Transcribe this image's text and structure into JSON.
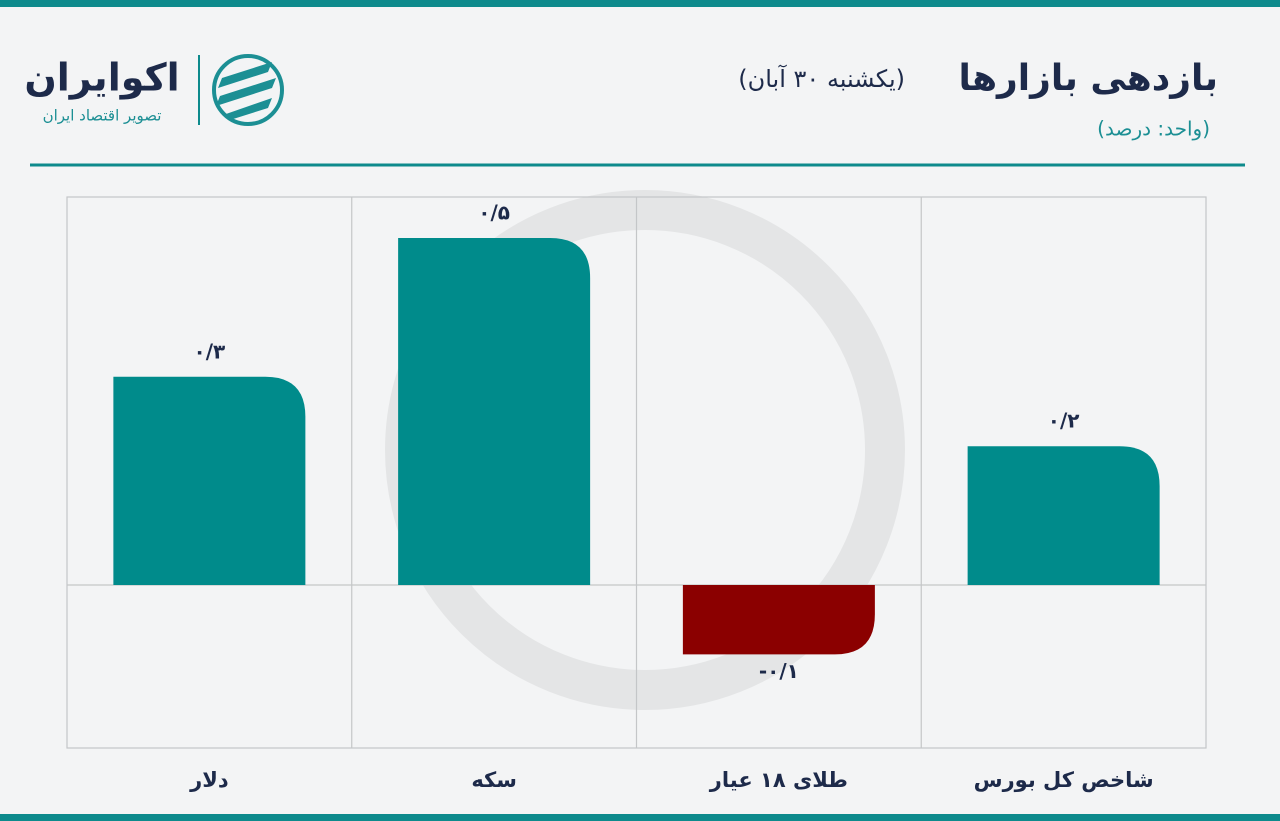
{
  "chart_data": {
    "type": "bar",
    "title": "بازدهی بازارها",
    "subtitle": "(یکشنبه ۳۰ آبان)",
    "unit": "(واحد: درصد)",
    "brand_name": "اکوایران",
    "brand_tagline": "تصویر اقتصاد ایران",
    "categories": [
      "دلار",
      "سکه",
      "طلای ۱۸ عیار",
      "شاخص کل بورس"
    ],
    "values": [
      0.3,
      0.5,
      -0.1,
      0.2
    ],
    "value_labels": [
      "۰/۳",
      "۰/۵",
      "-۰/۱",
      "۰/۲"
    ],
    "positive_color": "#008b8b",
    "negative_color": "#8b0000"
  }
}
